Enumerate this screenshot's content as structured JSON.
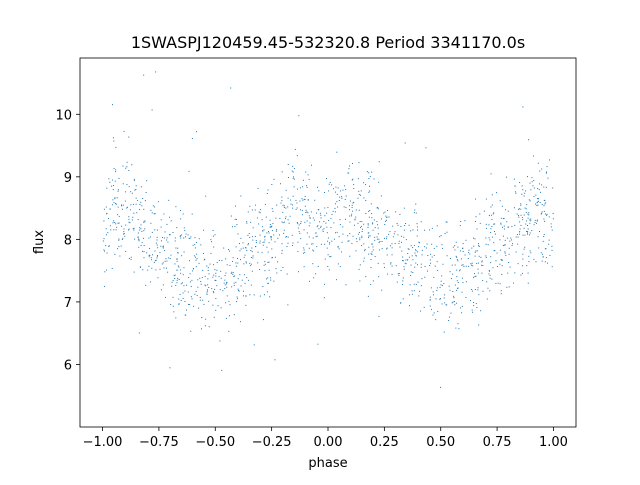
{
  "chart_data": {
    "type": "scatter",
    "title": "1SWASPJ120459.45-532320.8 Period 3341170.0s",
    "xlabel": "phase",
    "ylabel": "flux",
    "xlim": [
      -1.1,
      1.1
    ],
    "ylim": [
      5.0,
      10.9
    ],
    "xticks": [
      -1.0,
      -0.75,
      -0.5,
      -0.25,
      0.0,
      0.25,
      0.5,
      0.75,
      1.0
    ],
    "xtick_labels": [
      "−1.00",
      "−0.75",
      "−0.50",
      "−0.25",
      "0.00",
      "0.25",
      "0.50",
      "0.75",
      "1.00"
    ],
    "yticks": [
      6,
      7,
      8,
      9,
      10
    ],
    "ytick_labels": [
      "6",
      "7",
      "8",
      "9",
      "10"
    ],
    "grid": false,
    "marker_color": "#1f77b4",
    "series": [
      {
        "points_description_free": true,
        "x": [
          -1.0,
          -0.97,
          -0.95,
          -0.9,
          -0.85,
          -0.8,
          -0.75,
          -0.7,
          -0.65,
          -0.6,
          -0.55,
          -0.5,
          -0.45,
          -0.4,
          -0.35,
          -0.3,
          -0.25,
          -0.2,
          -0.15,
          -0.1,
          -0.05,
          0.0,
          0.05,
          0.1,
          0.15,
          0.2,
          0.25,
          0.3,
          0.35,
          0.4,
          0.45,
          0.5,
          0.55,
          0.6,
          0.65,
          0.7,
          0.75,
          0.8,
          0.85,
          0.9,
          0.95,
          1.0
        ],
        "y": [
          8.0,
          8.5,
          8.6,
          8.5,
          8.2,
          8.1,
          7.9,
          7.8,
          7.6,
          7.5,
          7.4,
          7.4,
          7.4,
          7.5,
          7.7,
          7.9,
          8.0,
          8.2,
          8.4,
          8.3,
          8.2,
          8.0,
          8.4,
          8.6,
          8.3,
          8.1,
          8.0,
          7.8,
          7.7,
          7.6,
          7.5,
          7.4,
          7.4,
          7.5,
          7.6,
          7.8,
          8.0,
          8.2,
          8.3,
          8.4,
          8.5,
          8.2
        ]
      }
    ]
  }
}
